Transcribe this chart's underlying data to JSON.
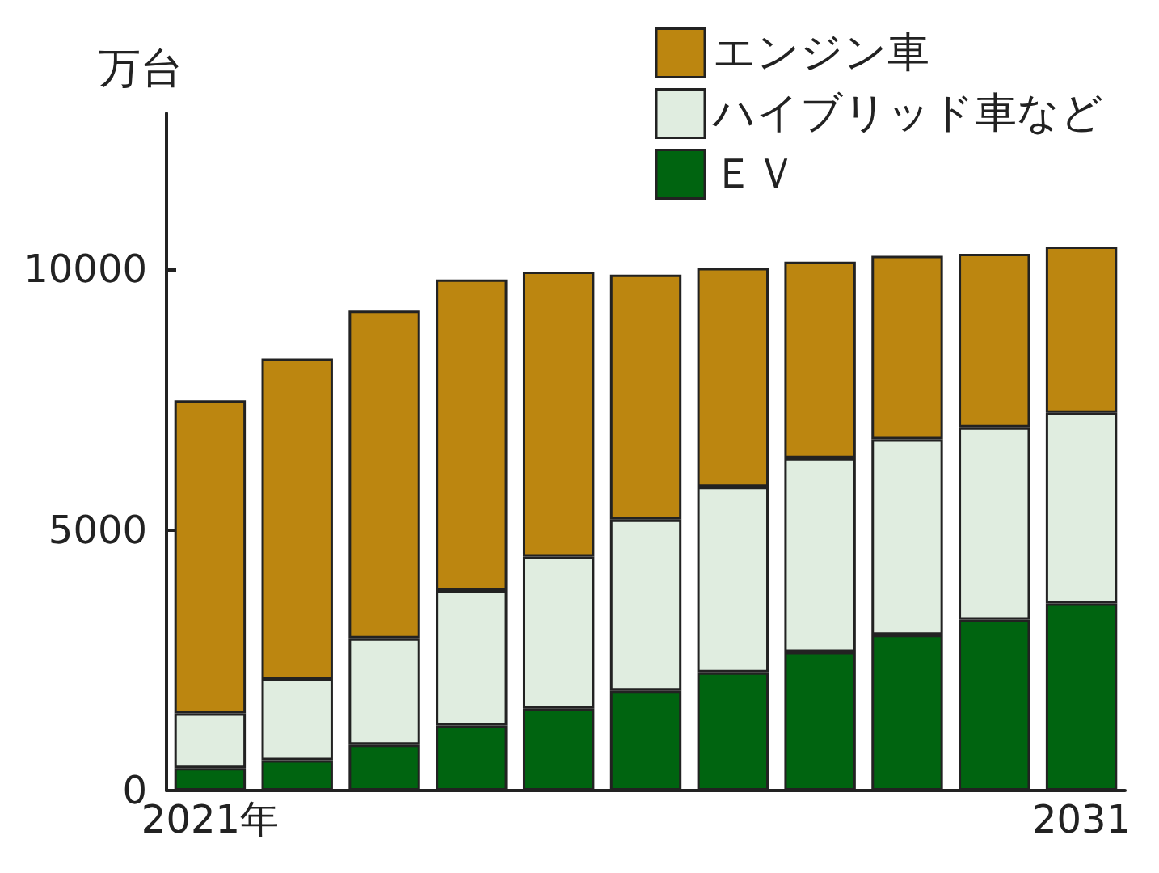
{
  "chart_data": {
    "type": "bar",
    "stacked": true,
    "ylabel": "万台",
    "categories": [
      "2021年",
      null,
      null,
      null,
      null,
      null,
      null,
      null,
      null,
      null,
      "2031"
    ],
    "series": [
      {
        "name": "ＥＶ",
        "color": "#006410",
        "values": [
          430,
          580,
          880,
          1250,
          1580,
          1920,
          2270,
          2660,
          2990,
          3280,
          3590
        ]
      },
      {
        "name": "ハイブリッド車など",
        "color": "#e0ede0",
        "values": [
          1050,
          1560,
          2040,
          2580,
          2910,
          3280,
          3560,
          3720,
          3750,
          3690,
          3660
        ]
      },
      {
        "name": "エンジン車",
        "color": "#bc8610",
        "values": [
          6010,
          6150,
          6290,
          5980,
          5470,
          4700,
          4200,
          3770,
          3520,
          3330,
          3190
        ]
      }
    ],
    "ylim": [
      0,
      13000
    ],
    "yticks": [
      0,
      5000,
      10000
    ],
    "grid": false,
    "legend": "top right"
  }
}
